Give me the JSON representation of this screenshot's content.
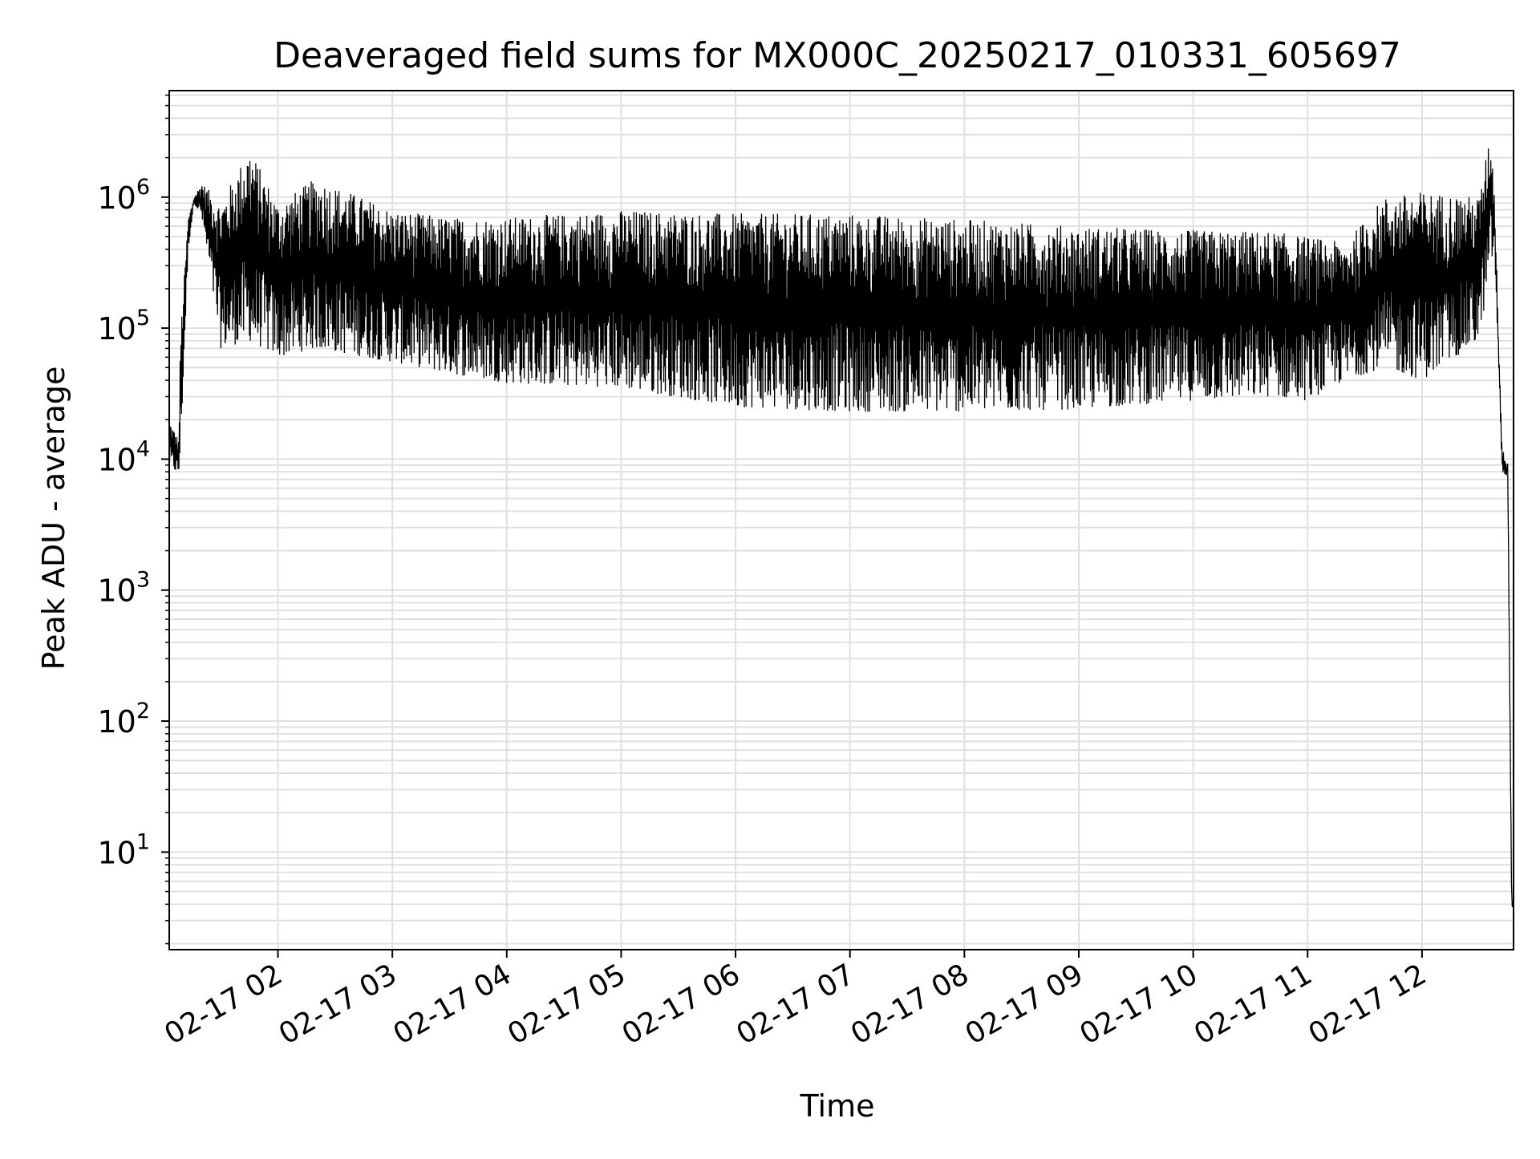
{
  "chart_data": {
    "type": "line",
    "title": "Deaveraged field sums for MX000C_20250217_010331_605697",
    "xlabel": "Time",
    "ylabel": "Peak ADU - average",
    "yscale": "log",
    "ylim": [
      1.8,
      6500000
    ],
    "xlim": [
      "2025-02-17 01:03",
      "2025-02-17 12:48"
    ],
    "grid": true,
    "grid_minor": true,
    "x_tick_labels": [
      "02-17 02",
      "02-17 03",
      "02-17 04",
      "02-17 05",
      "02-17 06",
      "02-17 07",
      "02-17 08",
      "02-17 09",
      "02-17 10",
      "02-17 11",
      "02-17 12"
    ],
    "x_tick_values": [
      "2025-02-17 02:00",
      "2025-02-17 03:00",
      "2025-02-17 04:00",
      "2025-02-17 05:00",
      "2025-02-17 06:00",
      "2025-02-17 07:00",
      "2025-02-17 08:00",
      "2025-02-17 09:00",
      "2025-02-17 10:00",
      "2025-02-17 11:00",
      "2025-02-17 12:00"
    ],
    "y_tick_labels": [
      {
        "base": "10",
        "exp": "1"
      },
      {
        "base": "10",
        "exp": "2"
      },
      {
        "base": "10",
        "exp": "3"
      },
      {
        "base": "10",
        "exp": "4"
      },
      {
        "base": "10",
        "exp": "5"
      },
      {
        "base": "10",
        "exp": "6"
      }
    ],
    "y_tick_values": [
      10,
      100,
      1000,
      10000,
      100000,
      1000000
    ],
    "line_color": "#000000",
    "grid_color": "#e0e0e0",
    "series": [
      {
        "envelope": [
          {
            "t": "2025-02-17 01:03",
            "hi": 20000,
            "lo": 9000
          },
          {
            "t": "2025-02-17 01:08",
            "hi": 14000,
            "lo": 7500
          },
          {
            "t": "2025-02-17 01:09",
            "hi": 100000,
            "lo": 12000
          },
          {
            "t": "2025-02-17 01:13",
            "hi": 700000,
            "lo": 400000
          },
          {
            "t": "2025-02-17 01:16",
            "hi": 1000000,
            "lo": 900000
          },
          {
            "t": "2025-02-17 01:20",
            "hi": 1300000,
            "lo": 700000
          },
          {
            "t": "2025-02-17 01:30",
            "hi": 900000,
            "lo": 70000
          },
          {
            "t": "2025-02-17 01:45",
            "hi": 2400000,
            "lo": 80000
          },
          {
            "t": "2025-02-17 02:00",
            "hi": 900000,
            "lo": 60000
          },
          {
            "t": "2025-02-17 02:20",
            "hi": 1400000,
            "lo": 70000
          },
          {
            "t": "2025-02-17 03:00",
            "hi": 800000,
            "lo": 55000
          },
          {
            "t": "2025-02-17 03:30",
            "hi": 700000,
            "lo": 45000
          },
          {
            "t": "2025-02-17 04:00",
            "hi": 700000,
            "lo": 38000
          },
          {
            "t": "2025-02-17 05:00",
            "hi": 800000,
            "lo": 35000
          },
          {
            "t": "2025-02-17 06:00",
            "hi": 750000,
            "lo": 25000
          },
          {
            "t": "2025-02-17 07:00",
            "hi": 750000,
            "lo": 23000
          },
          {
            "t": "2025-02-17 08:00",
            "hi": 680000,
            "lo": 23000
          },
          {
            "t": "2025-02-17 09:00",
            "hi": 600000,
            "lo": 24000
          },
          {
            "t": "2025-02-17 10:00",
            "hi": 560000,
            "lo": 28000
          },
          {
            "t": "2025-02-17 10:40",
            "hi": 550000,
            "lo": 30000
          },
          {
            "t": "2025-02-17 11:00",
            "hi": 500000,
            "lo": 28000
          },
          {
            "t": "2025-02-17 11:20",
            "hi": 450000,
            "lo": 40000
          },
          {
            "t": "2025-02-17 11:40",
            "hi": 1000000,
            "lo": 50000
          },
          {
            "t": "2025-02-17 12:00",
            "hi": 1100000,
            "lo": 40000
          },
          {
            "t": "2025-02-17 12:30",
            "hi": 1000000,
            "lo": 80000
          },
          {
            "t": "2025-02-17 12:36",
            "hi": 3200000,
            "lo": 300000
          },
          {
            "t": "2025-02-17 12:38",
            "hi": 1100000,
            "lo": 400000
          },
          {
            "t": "2025-02-17 12:42",
            "hi": 12000,
            "lo": 8000
          },
          {
            "t": "2025-02-17 12:45",
            "hi": 9500,
            "lo": 7000
          },
          {
            "t": "2025-02-17 12:47",
            "hi": 5,
            "lo": 3.8
          },
          {
            "t": "2025-02-17 12:48",
            "hi": 4,
            "lo": 3.8
          }
        ]
      }
    ]
  }
}
